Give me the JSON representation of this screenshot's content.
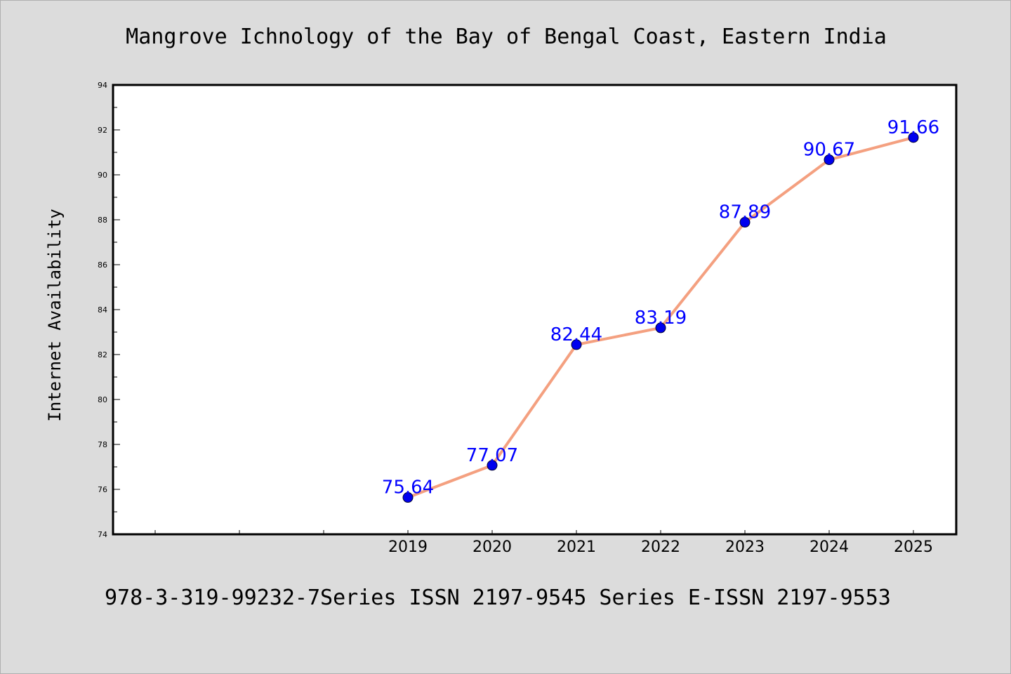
{
  "chart_data": {
    "type": "line",
    "title": "Mangrove Ichnology of the Bay of Bengal Coast, Eastern India",
    "xlabel": "",
    "ylabel": "Internet Availability",
    "categories": [
      "2019",
      "2020",
      "2021",
      "2022",
      "2023",
      "2024",
      "2025"
    ],
    "series": [
      {
        "values": [
          75.64,
          77.07,
          82.44,
          83.19,
          87.89,
          90.67,
          91.66
        ],
        "data_labels": [
          "75.64",
          "77.07",
          "82.44",
          "83.19",
          "87.89",
          "90.67",
          "91.66"
        ],
        "line_color": "#f4a080",
        "marker_color": "#0000ee"
      }
    ],
    "ylim": [
      74,
      94
    ],
    "y_ticks": [
      "74",
      "76",
      "78",
      "80",
      "82",
      "84",
      "86",
      "88",
      "90",
      "92",
      "94"
    ],
    "grid": false,
    "legend": "none",
    "label_color": "#0000ff"
  },
  "footnote": "978-3-319-99232-7Series ISSN 2197-9545 Series E-ISSN 2197-9553",
  "colors": {
    "background": "#dcdcdc",
    "plot_area": "#ffffff"
  }
}
